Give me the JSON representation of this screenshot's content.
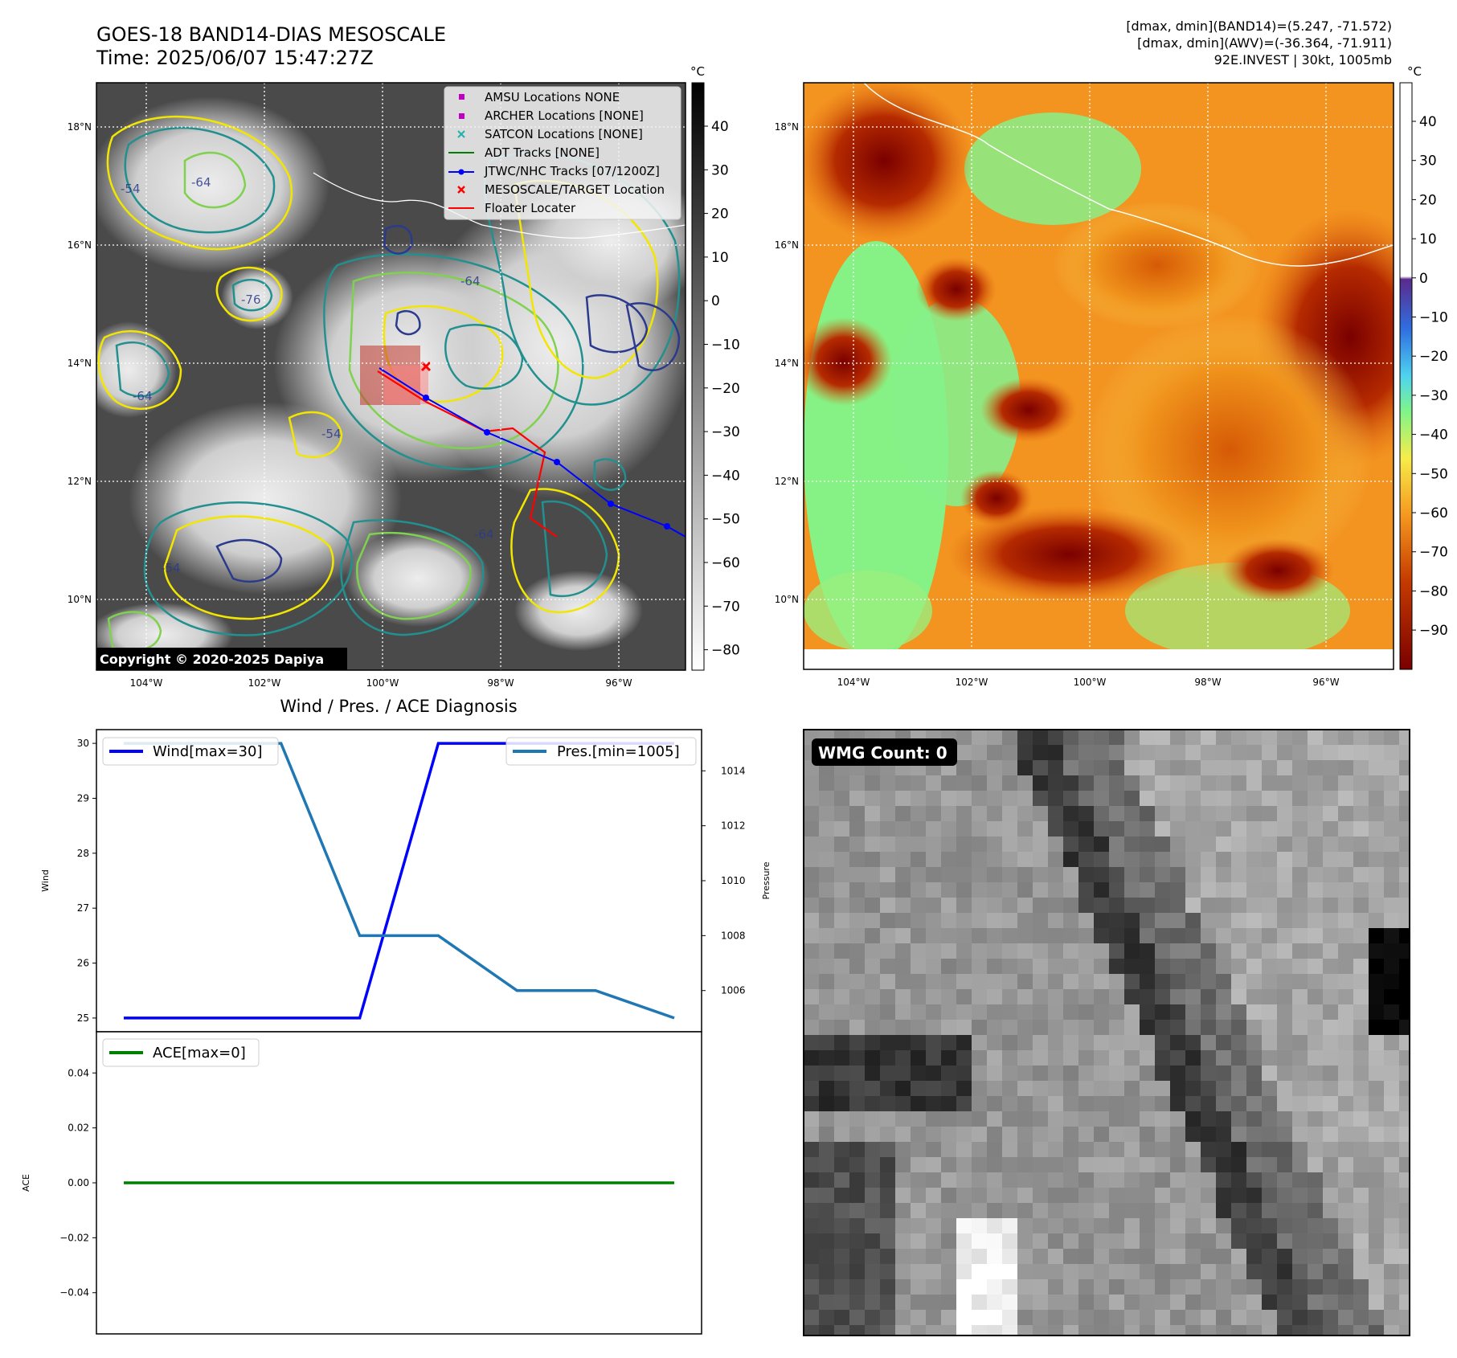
{
  "header": {
    "title_line1": "GOES-18 BAND14-DIAS MESOSCALE",
    "title_line2": "Time: 2025/06/07 15:47:27Z",
    "info_line1": "[dmax, dmin](BAND14)=(5.247, -71.572)",
    "info_line2": "[dmax, dmin](AWV)=(-36.364, -71.911)",
    "info_line3": "92E.INVEST | 30kt, 1005mb"
  },
  "maps": {
    "lon_ticks": [
      "104°W",
      "102°W",
      "100°W",
      "98°W",
      "96°W"
    ],
    "lat_ticks": [
      "18°N",
      "16°N",
      "14°N",
      "12°N",
      "10°N"
    ],
    "copyright": "Copyright © 2020-2025 Dapiya",
    "legend": [
      "AMSU Locations NONE",
      "ARCHER Locations [NONE]",
      "SATCON Locations [NONE]",
      "ADT Tracks [NONE]",
      "JTWC/NHC Tracks [07/1200Z]",
      "MESOSCALE/TARGET Location",
      "Floater Locater"
    ],
    "contour_labels": [
      "-64",
      "-54",
      "-76",
      "-64",
      "-64",
      "-54",
      "-54",
      "-64"
    ],
    "left_colorbar": {
      "unit": "°C",
      "ticks": [
        "40",
        "30",
        "20",
        "10",
        "0",
        "−10",
        "−20",
        "−30",
        "−40",
        "−50",
        "−60",
        "−70",
        "−80"
      ]
    },
    "right_colorbar": {
      "unit": "°C",
      "ticks": [
        "40",
        "30",
        "20",
        "10",
        "0",
        "−10",
        "−20",
        "−30",
        "−40",
        "−50",
        "−60",
        "−70",
        "−80",
        "−90"
      ]
    },
    "colors": {
      "track": "#0000ff",
      "floater": "#ff0000",
      "contour_yellow": "#f2e600",
      "contour_green": "#7fd14f",
      "contour_teal": "#22908f",
      "contour_navy": "#2b3a8c"
    }
  },
  "diagnosis": {
    "title": "Wind / Pres. / ACE Diagnosis",
    "wind_ylabel": "Wind",
    "pres_ylabel": "Pressure",
    "ace_ylabel": "ACE",
    "wind_legend": "Wind[max=30]",
    "pres_legend": "Pres.[min=1005]",
    "ace_legend": "ACE[max=0]",
    "wind_ticks": [
      "30",
      "29",
      "28",
      "27",
      "26",
      "25"
    ],
    "pres_ticks": [
      "1014",
      "1012",
      "1010",
      "1008",
      "1006"
    ],
    "ace_ticks": [
      "0.04",
      "0.02",
      "0.00",
      "−0.02",
      "−0.04"
    ]
  },
  "wmg": {
    "label": "WMG Count: 0"
  },
  "chart_data": [
    {
      "type": "line",
      "x": [
        0,
        1,
        2,
        3,
        4,
        5,
        6,
        7
      ],
      "series": [
        {
          "name": "Wind[max=30]",
          "axis": "left",
          "color": "#0000ff",
          "values": [
            25,
            25,
            25,
            25,
            30,
            30,
            30,
            30
          ]
        },
        {
          "name": "Pres.[min=1005]",
          "axis": "right",
          "color": "#1f77b4",
          "values": [
            1015,
            1015,
            1015,
            1008,
            1008,
            1006,
            1006,
            1005
          ]
        }
      ],
      "ylim_left": [
        24.75,
        30.25
      ],
      "ylim_right": [
        1004.5,
        1015.5
      ]
    },
    {
      "type": "line",
      "x": [
        0,
        1,
        2,
        3,
        4,
        5,
        6,
        7
      ],
      "series": [
        {
          "name": "ACE[max=0]",
          "color": "#008000",
          "values": [
            0,
            0,
            0,
            0,
            0,
            0,
            0,
            0
          ]
        }
      ],
      "ylim": [
        -0.055,
        0.055
      ]
    }
  ]
}
